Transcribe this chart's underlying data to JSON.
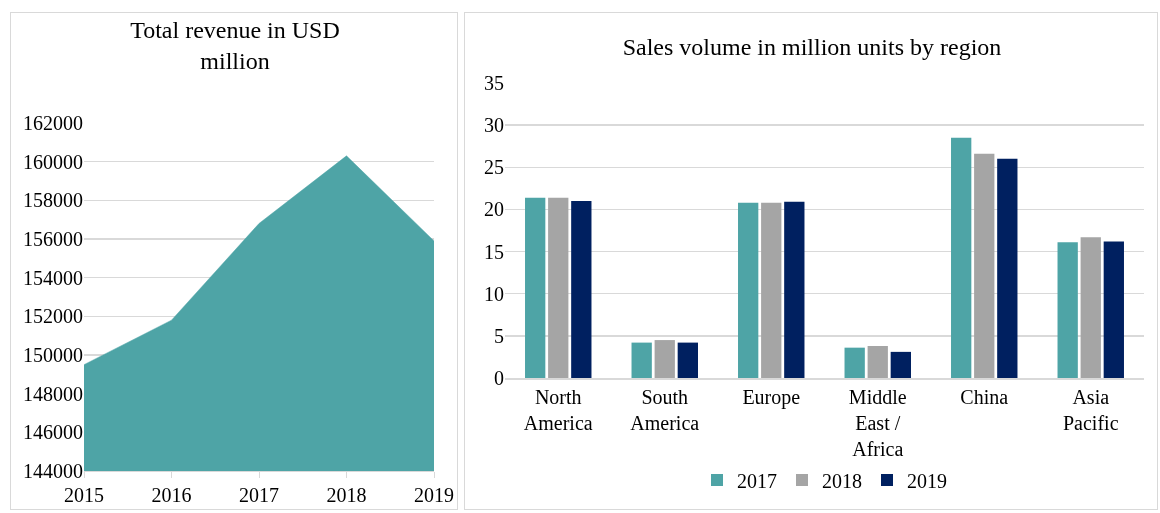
{
  "chart_data": [
    {
      "type": "area",
      "title": "Total revenue in USD million",
      "x": [
        2015,
        2016,
        2017,
        2018,
        2019
      ],
      "values": [
        149500,
        151800,
        156800,
        160300,
        155900
      ],
      "color": "#4ea4a6",
      "xlim": [
        2015,
        2019
      ],
      "xticks": [
        2015,
        2016,
        2017,
        2018,
        2019
      ],
      "ylim": [
        144000,
        162000
      ],
      "yticks": [
        144000,
        146000,
        148000,
        150000,
        152000,
        154000,
        156000,
        158000,
        160000,
        162000
      ],
      "grid": "y",
      "legend": false
    },
    {
      "type": "bar",
      "title": "Sales volume in million units by region",
      "categories": [
        "North America",
        "South America",
        "Europe",
        "Middle East / Africa",
        "China",
        "Asia Pacific"
      ],
      "series": [
        {
          "name": "2017",
          "color": "#4ea4a6",
          "values": [
            21.4,
            4.2,
            20.8,
            3.6,
            28.5,
            16.1
          ]
        },
        {
          "name": "2018",
          "color": "#a5a5a5",
          "values": [
            21.4,
            4.5,
            20.8,
            3.8,
            26.6,
            16.7
          ]
        },
        {
          "name": "2019",
          "color": "#002060",
          "values": [
            21.0,
            4.2,
            20.9,
            3.1,
            26.0,
            16.2
          ]
        }
      ],
      "ylim": [
        0,
        35
      ],
      "yticks": [
        0,
        5,
        10,
        15,
        20,
        25,
        30,
        35
      ],
      "grid": "y",
      "legend": "bottom"
    }
  ]
}
